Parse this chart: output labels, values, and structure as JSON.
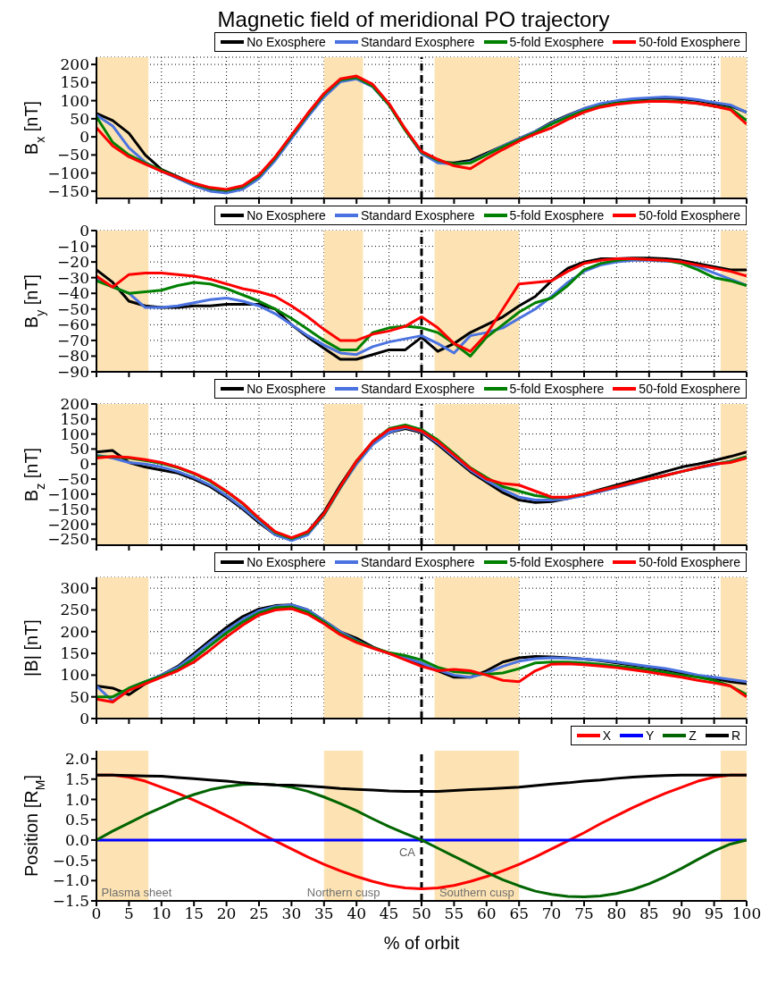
{
  "chart_data": [
    {
      "type": "line",
      "title": "Magnetic field of meridional PO trajectory",
      "ylabel": "B$_{x}$ [nT]",
      "xlim": [
        0,
        100
      ],
      "xticks": [
        0,
        5,
        10,
        15,
        20,
        25,
        30,
        35,
        40,
        45,
        50,
        55,
        60,
        65,
        70,
        75,
        80,
        85,
        90,
        95,
        100
      ],
      "ylim": [
        -170,
        220
      ],
      "yticks": [
        -150,
        -100,
        -50,
        0,
        50,
        100,
        150,
        200
      ],
      "tick_labels": "y",
      "grid": true,
      "legend": "top right",
      "line_style": "solid",
      "x": [
        0,
        2.5,
        5,
        7.5,
        10,
        12.5,
        15,
        17.5,
        20,
        22.5,
        25,
        27.5,
        30,
        32.5,
        35,
        37.5,
        40,
        42.5,
        45,
        47.5,
        50,
        52.5,
        55,
        57.5,
        60,
        62.5,
        65,
        67.5,
        70,
        72.5,
        75,
        77.5,
        80,
        82.5,
        85,
        87.5,
        90,
        92.5,
        95,
        97.5,
        100
      ],
      "series": [
        {
          "name": "No Exosphere",
          "color": "#000000",
          "values": [
            65,
            45,
            10,
            -50,
            -90,
            -110,
            -130,
            -145,
            -150,
            -140,
            -110,
            -60,
            0,
            60,
            115,
            155,
            162,
            140,
            90,
            20,
            -45,
            -70,
            -72,
            -65,
            -45,
            -25,
            -5,
            15,
            40,
            60,
            78,
            90,
            98,
            103,
            106,
            107,
            105,
            100,
            92,
            85,
            68
          ]
        },
        {
          "name": "Standard Exosphere",
          "color": "#4a72e0",
          "values": [
            60,
            30,
            -30,
            -70,
            -95,
            -115,
            -135,
            -150,
            -155,
            -145,
            -115,
            -65,
            -5,
            55,
            110,
            152,
            160,
            138,
            88,
            20,
            -45,
            -72,
            -75,
            -70,
            -48,
            -25,
            -5,
            15,
            38,
            58,
            78,
            92,
            100,
            105,
            108,
            110,
            108,
            103,
            95,
            88,
            68
          ]
        },
        {
          "name": "5-fold Exosphere",
          "color": "#008000",
          "values": [
            55,
            -15,
            -50,
            -72,
            -92,
            -112,
            -130,
            -143,
            -148,
            -138,
            -108,
            -58,
            2,
            62,
            117,
            157,
            164,
            140,
            88,
            18,
            -42,
            -65,
            -75,
            -72,
            -50,
            -28,
            -8,
            12,
            35,
            55,
            72,
            85,
            93,
            97,
            99,
            99,
            97,
            92,
            85,
            78,
            45
          ]
        },
        {
          "name": "50-fold Exosphere",
          "color": "#ff0000",
          "values": [
            25,
            -25,
            -55,
            -75,
            -95,
            -112,
            -128,
            -140,
            -145,
            -135,
            -105,
            -55,
            5,
            65,
            120,
            160,
            168,
            145,
            92,
            22,
            -40,
            -62,
            -80,
            -88,
            -60,
            -35,
            -12,
            8,
            25,
            48,
            68,
            82,
            90,
            95,
            98,
            98,
            96,
            92,
            85,
            75,
            35
          ]
        }
      ],
      "bands": [
        {
          "axis": "x",
          "from": 0,
          "to": 8,
          "color": "#fde3b3"
        },
        {
          "axis": "x",
          "from": 35,
          "to": 41,
          "color": "#fde3b3"
        },
        {
          "axis": "x",
          "from": 52,
          "to": 65,
          "color": "#fde3b3"
        },
        {
          "axis": "x",
          "from": 96,
          "to": 100,
          "color": "#fde3b3"
        }
      ],
      "ref_lines": [
        {
          "axis": "x",
          "value": 50,
          "color": "#000000",
          "line_style": "dashed"
        }
      ]
    },
    {
      "type": "line",
      "ylabel": "B$_{y}$ [nT]",
      "xlim": [
        0,
        100
      ],
      "xticks": [
        0,
        5,
        10,
        15,
        20,
        25,
        30,
        35,
        40,
        45,
        50,
        55,
        60,
        65,
        70,
        75,
        80,
        85,
        90,
        95,
        100
      ],
      "ylim": [
        -90,
        0
      ],
      "yticks": [
        -90,
        -80,
        -70,
        -60,
        -50,
        -40,
        -30,
        -20,
        -10,
        0
      ],
      "tick_labels": "y",
      "grid": true,
      "legend": "top right",
      "line_style": "solid",
      "x": [
        0,
        2.5,
        5,
        7.5,
        10,
        12.5,
        15,
        17.5,
        20,
        22.5,
        25,
        27.5,
        30,
        32.5,
        35,
        37.5,
        40,
        42.5,
        45,
        47.5,
        50,
        52.5,
        55,
        57.5,
        60,
        62.5,
        65,
        67.5,
        70,
        72.5,
        75,
        77.5,
        80,
        82.5,
        85,
        87.5,
        90,
        92.5,
        95,
        97.5,
        100
      ],
      "series": [
        {
          "name": "No Exosphere",
          "color": "#000000",
          "values": [
            -25,
            -33,
            -45,
            -48,
            -49,
            -49,
            -48,
            -48,
            -47,
            -47,
            -47,
            -50,
            -60,
            -68,
            -75,
            -82,
            -82,
            -79,
            -76,
            -76,
            -68,
            -77,
            -72,
            -65,
            -60,
            -55,
            -48,
            -42,
            -32,
            -24,
            -20,
            -18,
            -18,
            -17.5,
            -17.5,
            -18,
            -19,
            -21,
            -23,
            -25,
            -25
          ]
        },
        {
          "name": "Standard Exosphere",
          "color": "#4a72e0",
          "values": [
            -30,
            -36,
            -40,
            -49,
            -49,
            -48,
            -46,
            -44,
            -43,
            -45,
            -48,
            -53,
            -60,
            -67,
            -73,
            -78,
            -79,
            -74,
            -71,
            -69,
            -67,
            -72,
            -78,
            -67,
            -65,
            -62,
            -56,
            -50,
            -42,
            -33,
            -26,
            -22,
            -20,
            -19,
            -19,
            -19.5,
            -20,
            -23,
            -27,
            -31,
            -35
          ]
        },
        {
          "name": "5-fold Exosphere",
          "color": "#008000",
          "values": [
            -32,
            -36,
            -40,
            -39,
            -38,
            -35,
            -33,
            -34,
            -37,
            -41,
            -45,
            -50,
            -56,
            -63,
            -70,
            -76,
            -76,
            -65,
            -62,
            -61,
            -62,
            -65,
            -72,
            -80,
            -68,
            -60,
            -52,
            -46,
            -43,
            -35,
            -25,
            -21,
            -19,
            -18,
            -18.5,
            -19,
            -21,
            -25,
            -30,
            -32,
            -35
          ]
        },
        {
          "name": "50-fold Exosphere",
          "color": "#ff0000",
          "values": [
            -29,
            -36,
            -28,
            -27,
            -27,
            -28,
            -29,
            -31,
            -34,
            -37,
            -39,
            -42,
            -48,
            -55,
            -63,
            -70,
            -70,
            -66,
            -64,
            -61,
            -55,
            -62,
            -72,
            -77,
            -66,
            -50,
            -34,
            -33,
            -32,
            -26,
            -21,
            -19,
            -18,
            -18,
            -18.5,
            -19,
            -20,
            -22,
            -24,
            -26,
            -29
          ]
        }
      ],
      "bands": [
        {
          "axis": "x",
          "from": 0,
          "to": 8,
          "color": "#fde3b3"
        },
        {
          "axis": "x",
          "from": 35,
          "to": 41,
          "color": "#fde3b3"
        },
        {
          "axis": "x",
          "from": 52,
          "to": 65,
          "color": "#fde3b3"
        },
        {
          "axis": "x",
          "from": 96,
          "to": 100,
          "color": "#fde3b3"
        }
      ],
      "ref_lines": [
        {
          "axis": "x",
          "value": 50,
          "color": "#000000",
          "line_style": "dashed"
        }
      ]
    },
    {
      "type": "line",
      "ylabel": "B$_{z}$ [nT]",
      "xlim": [
        0,
        100
      ],
      "xticks": [
        0,
        5,
        10,
        15,
        20,
        25,
        30,
        35,
        40,
        45,
        50,
        55,
        60,
        65,
        70,
        75,
        80,
        85,
        90,
        95,
        100
      ],
      "ylim": [
        -270,
        200
      ],
      "yticks": [
        -250,
        -200,
        -150,
        -100,
        -50,
        0,
        50,
        100,
        150,
        200
      ],
      "tick_labels": "y",
      "grid": true,
      "legend": "top right",
      "line_style": "solid",
      "x": [
        0,
        2.5,
        5,
        7.5,
        10,
        12.5,
        15,
        17.5,
        20,
        22.5,
        25,
        27.5,
        30,
        32.5,
        35,
        37.5,
        40,
        42.5,
        45,
        47.5,
        50,
        52.5,
        55,
        57.5,
        60,
        62.5,
        65,
        67.5,
        70,
        72.5,
        75,
        77.5,
        80,
        82.5,
        85,
        87.5,
        90,
        92.5,
        95,
        97.5,
        100
      ],
      "series": [
        {
          "name": "No Exosphere",
          "color": "#000000",
          "values": [
            40,
            45,
            5,
            -10,
            -20,
            -30,
            -50,
            -75,
            -110,
            -150,
            -195,
            -235,
            -250,
            -225,
            -160,
            -70,
            10,
            70,
            105,
            118,
            105,
            65,
            20,
            -25,
            -60,
            -95,
            -120,
            -128,
            -125,
            -115,
            -100,
            -85,
            -70,
            -55,
            -40,
            -25,
            -10,
            0,
            12,
            25,
            40
          ]
        },
        {
          "name": "Standard Exosphere",
          "color": "#4a72e0",
          "values": [
            30,
            20,
            5,
            0,
            -10,
            -25,
            -45,
            -70,
            -105,
            -145,
            -190,
            -235,
            -255,
            -235,
            -170,
            -80,
            0,
            65,
            105,
            122,
            108,
            70,
            25,
            -20,
            -55,
            -85,
            -110,
            -120,
            -120,
            -115,
            -105,
            -92,
            -78,
            -65,
            -50,
            -37,
            -25,
            -13,
            -3,
            10,
            25
          ]
        },
        {
          "name": "5-fold Exosphere",
          "color": "#008000",
          "values": [
            25,
            24,
            20,
            12,
            2,
            -12,
            -32,
            -58,
            -92,
            -132,
            -182,
            -228,
            -248,
            -228,
            -168,
            -78,
            8,
            75,
            118,
            130,
            115,
            80,
            35,
            -12,
            -45,
            -75,
            -90,
            -105,
            -112,
            -110,
            -100,
            -88,
            -75,
            -62,
            -50,
            -38,
            -25,
            -12,
            0,
            8,
            25
          ]
        },
        {
          "name": "50-fold Exosphere",
          "color": "#ff0000",
          "values": [
            20,
            25,
            22,
            15,
            5,
            -10,
            -30,
            -55,
            -90,
            -130,
            -180,
            -225,
            -245,
            -225,
            -165,
            -75,
            10,
            75,
            115,
            125,
            110,
            75,
            30,
            -15,
            -50,
            -65,
            -70,
            -90,
            -110,
            -110,
            -100,
            -88,
            -75,
            -62,
            -50,
            -38,
            -25,
            -12,
            0,
            5,
            20
          ]
        }
      ],
      "bands": [
        {
          "axis": "x",
          "from": 0,
          "to": 8,
          "color": "#fde3b3"
        },
        {
          "axis": "x",
          "from": 35,
          "to": 41,
          "color": "#fde3b3"
        },
        {
          "axis": "x",
          "from": 52,
          "to": 65,
          "color": "#fde3b3"
        },
        {
          "axis": "x",
          "from": 96,
          "to": 100,
          "color": "#fde3b3"
        }
      ],
      "ref_lines": [
        {
          "axis": "x",
          "value": 50,
          "color": "#000000",
          "line_style": "dashed"
        }
      ]
    },
    {
      "type": "line",
      "ylabel": "|B| [nT]",
      "xlim": [
        0,
        100
      ],
      "xticks": [
        0,
        5,
        10,
        15,
        20,
        25,
        30,
        35,
        40,
        45,
        50,
        55,
        60,
        65,
        70,
        75,
        80,
        85,
        90,
        95,
        100
      ],
      "ylim": [
        0,
        325
      ],
      "yticks": [
        0,
        50,
        100,
        150,
        200,
        250,
        300
      ],
      "tick_labels": "y",
      "grid": true,
      "legend": "top right",
      "line_style": "solid",
      "x": [
        0,
        2.5,
        5,
        7.5,
        10,
        12.5,
        15,
        17.5,
        20,
        22.5,
        25,
        27.5,
        30,
        32.5,
        35,
        37.5,
        40,
        42.5,
        45,
        47.5,
        50,
        52.5,
        55,
        57.5,
        60,
        62.5,
        65,
        67.5,
        70,
        72.5,
        75,
        77.5,
        80,
        82.5,
        85,
        87.5,
        90,
        92.5,
        95,
        97.5,
        100
      ],
      "series": [
        {
          "name": "No Exosphere",
          "color": "#000000",
          "values": [
            75,
            70,
            55,
            80,
            100,
            120,
            150,
            180,
            210,
            235,
            252,
            260,
            262,
            250,
            225,
            200,
            185,
            165,
            150,
            140,
            125,
            110,
            95,
            95,
            110,
            130,
            140,
            143,
            142,
            140,
            137,
            133,
            128,
            123,
            118,
            112,
            105,
            98,
            92,
            85,
            80
          ]
        },
        {
          "name": "Standard Exosphere",
          "color": "#4a72e0",
          "values": [
            75,
            40,
            70,
            85,
            100,
            118,
            145,
            175,
            203,
            228,
            248,
            258,
            262,
            250,
            225,
            200,
            180,
            163,
            150,
            140,
            128,
            112,
            100,
            95,
            105,
            120,
            132,
            138,
            140,
            139,
            137,
            134,
            130,
            125,
            120,
            115,
            108,
            100,
            95,
            90,
            85
          ]
        },
        {
          "name": "5-fold Exosphere",
          "color": "#008000",
          "values": [
            50,
            50,
            70,
            85,
            98,
            113,
            138,
            168,
            197,
            222,
            243,
            255,
            257,
            245,
            222,
            195,
            178,
            163,
            152,
            145,
            135,
            118,
            108,
            105,
            102,
            105,
            115,
            128,
            130,
            130,
            128,
            125,
            121,
            117,
            112,
            106,
            100,
            95,
            88,
            75,
            55
          ]
        },
        {
          "name": "50-fold Exosphere",
          "color": "#ff0000",
          "values": [
            45,
            38,
            65,
            80,
            95,
            110,
            130,
            158,
            188,
            215,
            238,
            250,
            253,
            240,
            218,
            193,
            175,
            162,
            150,
            135,
            120,
            110,
            113,
            110,
            100,
            88,
            85,
            110,
            125,
            126,
            124,
            121,
            117,
            112,
            107,
            101,
            95,
            88,
            82,
            75,
            50
          ]
        }
      ],
      "bands": [
        {
          "axis": "x",
          "from": 0,
          "to": 8,
          "color": "#fde3b3"
        },
        {
          "axis": "x",
          "from": 35,
          "to": 41,
          "color": "#fde3b3"
        },
        {
          "axis": "x",
          "from": 52,
          "to": 65,
          "color": "#fde3b3"
        },
        {
          "axis": "x",
          "from": 96,
          "to": 100,
          "color": "#fde3b3"
        }
      ],
      "ref_lines": [
        {
          "axis": "x",
          "value": 50,
          "color": "#000000",
          "line_style": "dashed"
        }
      ]
    },
    {
      "type": "line",
      "xlabel": "% of orbit",
      "ylabel": "Position [R$_{M}$]",
      "xlim": [
        0,
        100
      ],
      "xticks": [
        0,
        5,
        10,
        15,
        20,
        25,
        30,
        35,
        40,
        45,
        50,
        55,
        60,
        65,
        70,
        75,
        80,
        85,
        90,
        95,
        100
      ],
      "ylim": [
        -1.5,
        2.2
      ],
      "yticks": [
        -1.5,
        {
          "value": -1,
          "label": "−1.0"
        },
        -0.5,
        {
          "value": 0,
          "label": "0.0"
        },
        0.5,
        {
          "value": 1,
          "label": "1.0"
        },
        1.5,
        {
          "value": 2,
          "label": "2.0"
        }
      ],
      "grid": false,
      "legend": "top right",
      "line_style": "solid",
      "x": [
        0,
        2.5,
        5,
        7.5,
        10,
        12.5,
        15,
        17.5,
        20,
        22.5,
        25,
        27.5,
        30,
        32.5,
        35,
        37.5,
        40,
        42.5,
        45,
        47.5,
        50,
        52.5,
        55,
        57.5,
        60,
        62.5,
        65,
        67.5,
        70,
        72.5,
        75,
        77.5,
        80,
        82.5,
        85,
        87.5,
        90,
        92.5,
        95,
        97.5,
        100
      ],
      "series": [
        {
          "name": "X",
          "color": "#ff0000",
          "values": [
            1.6,
            1.6,
            1.55,
            1.45,
            1.3,
            1.15,
            0.98,
            0.8,
            0.6,
            0.4,
            0.18,
            -0.02,
            -0.22,
            -0.42,
            -0.6,
            -0.76,
            -0.9,
            -1.02,
            -1.12,
            -1.18,
            -1.2,
            -1.18,
            -1.12,
            -1.02,
            -0.9,
            -0.76,
            -0.6,
            -0.42,
            -0.22,
            -0.02,
            0.18,
            0.4,
            0.6,
            0.8,
            0.98,
            1.15,
            1.3,
            1.45,
            1.55,
            1.6,
            1.6
          ]
        },
        {
          "name": "Y",
          "color": "#0000ff",
          "values": [
            0,
            0,
            0,
            0,
            0,
            0,
            0,
            0,
            0,
            0,
            0,
            0,
            0,
            0,
            0,
            0,
            0,
            0,
            0,
            0,
            0,
            0,
            0,
            0,
            0,
            0,
            0,
            0,
            0,
            0,
            0,
            0,
            0,
            0,
            0,
            0,
            0,
            0,
            0,
            0,
            0
          ]
        },
        {
          "name": "Z",
          "color": "#006400",
          "values": [
            0,
            0.22,
            0.42,
            0.62,
            0.8,
            0.98,
            1.12,
            1.24,
            1.32,
            1.37,
            1.38,
            1.36,
            1.3,
            1.2,
            1.06,
            0.9,
            0.72,
            0.52,
            0.33,
            0.16,
            0,
            -0.2,
            -0.4,
            -0.6,
            -0.8,
            -0.98,
            -1.13,
            -1.26,
            -1.34,
            -1.39,
            -1.4,
            -1.38,
            -1.32,
            -1.22,
            -1.08,
            -0.9,
            -0.7,
            -0.48,
            -0.27,
            -0.1,
            0
          ]
        },
        {
          "name": "R",
          "color": "#000000",
          "values": [
            1.6,
            1.6,
            1.59,
            1.58,
            1.57,
            1.54,
            1.51,
            1.48,
            1.45,
            1.41,
            1.38,
            1.36,
            1.35,
            1.33,
            1.3,
            1.27,
            1.25,
            1.23,
            1.21,
            1.2,
            1.2,
            1.2,
            1.22,
            1.24,
            1.26,
            1.28,
            1.3,
            1.34,
            1.38,
            1.41,
            1.45,
            1.48,
            1.52,
            1.55,
            1.57,
            1.59,
            1.6,
            1.6,
            1.6,
            1.6,
            1.6
          ]
        }
      ],
      "bands": [
        {
          "axis": "x",
          "from": 0,
          "to": 8,
          "color": "#fde3b3",
          "label": "Plasma sheet"
        },
        {
          "axis": "x",
          "from": 35,
          "to": 41,
          "color": "#fde3b3",
          "label": "Northern cusp"
        },
        {
          "axis": "x",
          "from": 52,
          "to": 65,
          "color": "#fde3b3",
          "label": "Southern cusp"
        },
        {
          "axis": "x",
          "from": 96,
          "to": 100,
          "color": "#fde3b3"
        }
      ],
      "ref_lines": [
        {
          "axis": "x",
          "value": 50,
          "color": "#000000",
          "line_style": "dashed",
          "label": "CA"
        }
      ]
    }
  ]
}
